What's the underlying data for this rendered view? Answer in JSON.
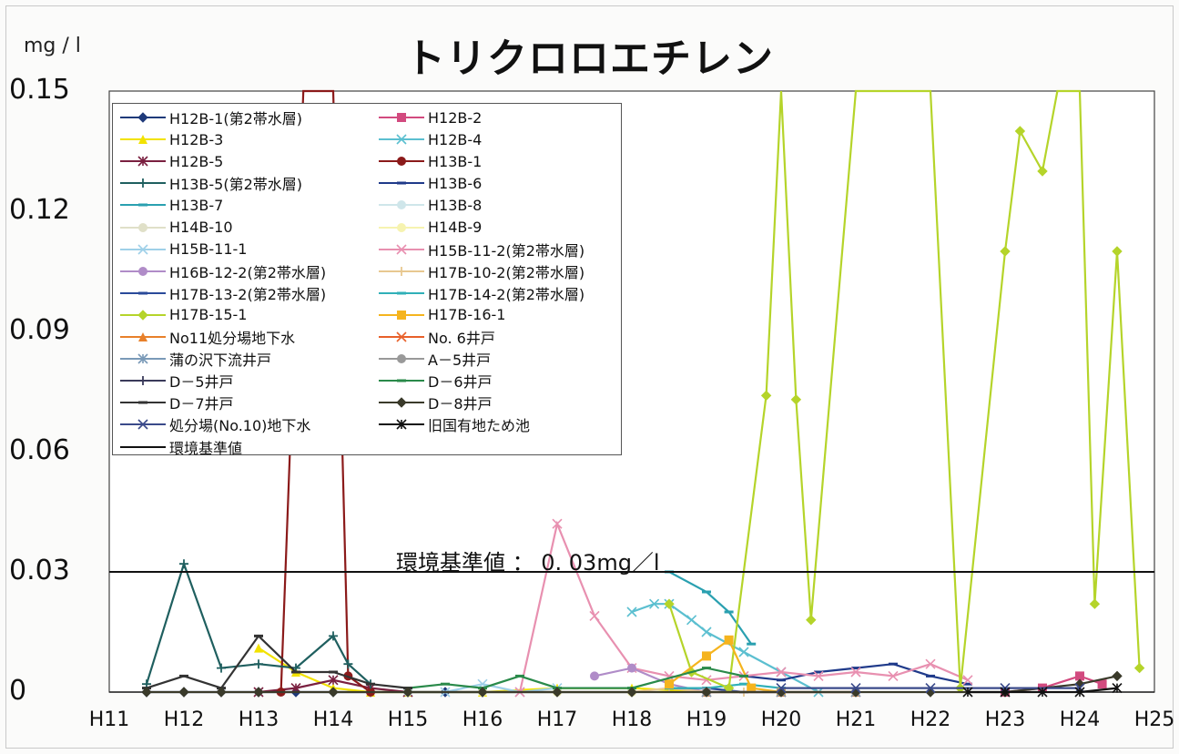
{
  "title": "トリクロロエチレン",
  "y_unit": "mg / l",
  "standard_label": "環境基準値 ： 0. 03mg／l",
  "chart_data": {
    "type": "line",
    "title": "トリクロロエチレン",
    "ylabel": "mg / l",
    "xlabel": "",
    "ylim": [
      0,
      0.15
    ],
    "yticks": [
      "0",
      "0.03",
      "0.06",
      "0.09",
      "0.12",
      "0.15"
    ],
    "xlim": [
      11,
      25
    ],
    "xticks": [
      "H11",
      "H12",
      "H13",
      "H14",
      "H15",
      "H16",
      "H17",
      "H18",
      "H19",
      "H20",
      "H21",
      "H22",
      "H23",
      "H24",
      "H25"
    ],
    "legend_position": "top-left",
    "reference_line": {
      "name": "環境基準値",
      "value": 0.03
    },
    "series": [
      {
        "name": "H12B-1(第2帯水層)",
        "color": "#1f3a7a",
        "marker": "diamond",
        "points": [
          [
            11.5,
            0
          ],
          [
            12,
            0
          ],
          [
            12.5,
            0
          ],
          [
            13,
            0
          ],
          [
            13.5,
            0
          ],
          [
            14,
            0
          ],
          [
            14.5,
            0
          ],
          [
            15,
            0
          ],
          [
            15.5,
            0
          ],
          [
            16,
            0
          ]
        ]
      },
      {
        "name": "H12B-2",
        "color": "#d24a7f",
        "marker": "square",
        "points": [
          [
            23,
            0
          ],
          [
            23.5,
            0.001
          ],
          [
            24,
            0.004
          ],
          [
            24.3,
            0.002
          ]
        ]
      },
      {
        "name": "H12B-3",
        "color": "#f2e200",
        "marker": "triangle",
        "points": [
          [
            13,
            0.011
          ],
          [
            13.5,
            0.005
          ],
          [
            14,
            0.001
          ],
          [
            14.5,
            0
          ],
          [
            15,
            0
          ],
          [
            16,
            0
          ],
          [
            17,
            0.001
          ],
          [
            18,
            0.001
          ],
          [
            19,
            0
          ]
        ]
      },
      {
        "name": "H12B-4",
        "color": "#5bbfd0",
        "marker": "x",
        "points": [
          [
            18,
            0.02
          ],
          [
            18.3,
            0.022
          ],
          [
            18.5,
            0.022
          ],
          [
            18.8,
            0.018
          ],
          [
            19,
            0.015
          ],
          [
            19.5,
            0.01
          ],
          [
            20,
            0.005
          ],
          [
            20.5,
            0
          ]
        ]
      },
      {
        "name": "H12B-5",
        "color": "#7a2040",
        "marker": "asterisk",
        "points": [
          [
            13,
            0
          ],
          [
            13.5,
            0.001
          ],
          [
            14,
            0.003
          ],
          [
            14.5,
            0.001
          ],
          [
            15,
            0
          ]
        ]
      },
      {
        "name": "H13B-1",
        "color": "#8b1a1a",
        "marker": "circle",
        "points": [
          [
            13.3,
            0
          ],
          [
            13.6,
            0.15
          ],
          [
            14,
            0.15
          ],
          [
            14.2,
            0.004
          ],
          [
            14.5,
            0
          ]
        ]
      },
      {
        "name": "H13B-5(第2帯水層)",
        "color": "#1f5f5f",
        "marker": "plus",
        "points": [
          [
            11.5,
            0.002
          ],
          [
            12,
            0.032
          ],
          [
            12.5,
            0.006
          ],
          [
            13,
            0.007
          ],
          [
            13.5,
            0.006
          ],
          [
            14,
            0.014
          ],
          [
            14.2,
            0.007
          ],
          [
            14.5,
            0.002
          ]
        ]
      },
      {
        "name": "H13B-6",
        "color": "#1f3a8a",
        "marker": "dash",
        "points": [
          [
            19.5,
            0.004
          ],
          [
            20,
            0.003
          ],
          [
            20.5,
            0.005
          ],
          [
            21,
            0.006
          ],
          [
            21.5,
            0.007
          ],
          [
            22,
            0.004
          ],
          [
            22.5,
            0.002
          ]
        ]
      },
      {
        "name": "H13B-7",
        "color": "#2aa0b0",
        "marker": "dash",
        "points": [
          [
            18.5,
            0.03
          ],
          [
            19,
            0.025
          ],
          [
            19.3,
            0.02
          ],
          [
            19.6,
            0.012
          ]
        ]
      },
      {
        "name": "H13B-8",
        "color": "#cfe6ea",
        "marker": "circle",
        "points": [
          [
            15,
            0
          ],
          [
            16,
            0
          ],
          [
            17,
            0
          ],
          [
            18,
            0
          ]
        ]
      },
      {
        "name": "H14B-10",
        "color": "#e0e0c8",
        "marker": "circle",
        "points": [
          [
            16,
            0
          ],
          [
            17,
            0
          ],
          [
            18,
            0
          ]
        ]
      },
      {
        "name": "H14B-9",
        "color": "#f6f3b0",
        "marker": "circle",
        "points": [
          [
            16,
            0
          ],
          [
            17,
            0
          ],
          [
            18,
            0
          ]
        ]
      },
      {
        "name": "H15B-11-1",
        "color": "#9fd0e8",
        "marker": "x",
        "points": [
          [
            15.5,
            0
          ],
          [
            16,
            0.002
          ],
          [
            16.5,
            0
          ],
          [
            17,
            0.001
          ]
        ]
      },
      {
        "name": "H15B-11-2(第2帯水層)",
        "color": "#e890b0",
        "marker": "x",
        "points": [
          [
            16.5,
            0
          ],
          [
            17,
            0.042
          ],
          [
            17.5,
            0.019
          ],
          [
            18,
            0.006
          ],
          [
            18.5,
            0.004
          ],
          [
            19,
            0.003
          ],
          [
            19.5,
            0.004
          ],
          [
            20,
            0.005
          ],
          [
            20.5,
            0.004
          ],
          [
            21,
            0.005
          ],
          [
            21.5,
            0.004
          ],
          [
            22,
            0.007
          ],
          [
            22.5,
            0.003
          ]
        ]
      },
      {
        "name": "H16B-12-2(第2帯水層)",
        "color": "#b08cc8",
        "marker": "circle",
        "points": [
          [
            17.5,
            0.004
          ],
          [
            18,
            0.006
          ],
          [
            18.5,
            0.002
          ],
          [
            19,
            0
          ]
        ]
      },
      {
        "name": "H17B-10-2(第2帯水層)",
        "color": "#e8c890",
        "marker": "plus",
        "points": [
          [
            18,
            0
          ],
          [
            18.5,
            0.001
          ],
          [
            19,
            0
          ],
          [
            19.5,
            0
          ]
        ]
      },
      {
        "name": "H17B-13-2(第2帯水層)",
        "color": "#2a4a9a",
        "marker": "dash",
        "points": [
          [
            18.5,
            0.001
          ],
          [
            19,
            0.001
          ],
          [
            19.5,
            0
          ],
          [
            20,
            0
          ]
        ]
      },
      {
        "name": "H17B-14-2(第2帯水層)",
        "color": "#30b0b8",
        "marker": "dash",
        "points": [
          [
            18.5,
            0.001
          ],
          [
            19,
            0.001
          ],
          [
            19.5,
            0.002
          ],
          [
            20,
            0.001
          ]
        ]
      },
      {
        "name": "H17B-15-1",
        "color": "#b5d42a",
        "marker": "diamond",
        "points": [
          [
            18.5,
            0.022
          ],
          [
            18.8,
            0.005
          ],
          [
            19.3,
            0.001
          ],
          [
            19.8,
            0.074
          ],
          [
            20,
            0.15
          ],
          [
            20.2,
            0.073
          ],
          [
            20.4,
            0.018
          ],
          [
            21,
            0.15
          ],
          [
            22,
            0.15
          ],
          [
            22.4,
            0.001
          ],
          [
            23,
            0.11
          ],
          [
            23.2,
            0.14
          ],
          [
            23.5,
            0.13
          ],
          [
            23.7,
            0.15
          ],
          [
            24,
            0.15
          ],
          [
            24.2,
            0.022
          ],
          [
            24.5,
            0.11
          ],
          [
            24.8,
            0.006
          ]
        ]
      },
      {
        "name": "H17B-16-1",
        "color": "#f5b41e",
        "marker": "square",
        "points": [
          [
            18.5,
            0.002
          ],
          [
            19,
            0.009
          ],
          [
            19.3,
            0.013
          ],
          [
            19.6,
            0.001
          ],
          [
            20,
            0
          ]
        ]
      },
      {
        "name": "No11処分場地下水",
        "color": "#e8802a",
        "marker": "triangle",
        "points": [
          [
            19,
            0
          ],
          [
            20,
            0
          ],
          [
            21,
            0
          ]
        ]
      },
      {
        "name": "No. 6井戸",
        "color": "#e8602a",
        "marker": "x",
        "points": [
          [
            19,
            0
          ],
          [
            20,
            0
          ],
          [
            21,
            0
          ]
        ]
      },
      {
        "name": "蒲の沢下流井戸",
        "color": "#7a9ab8",
        "marker": "asterisk",
        "points": [
          [
            19,
            0
          ],
          [
            20,
            0
          ],
          [
            21,
            0
          ]
        ]
      },
      {
        "name": "A－5井戸",
        "color": "#999999",
        "marker": "circle",
        "points": [
          [
            19,
            0
          ],
          [
            20,
            0
          ],
          [
            21,
            0
          ]
        ]
      },
      {
        "name": "D－5井戸",
        "color": "#3a3a5a",
        "marker": "plus",
        "points": [
          [
            15,
            0
          ],
          [
            16,
            0
          ],
          [
            17,
            0
          ],
          [
            18,
            0
          ]
        ]
      },
      {
        "name": "D－6井戸",
        "color": "#2a8a4a",
        "marker": "dash",
        "points": [
          [
            15,
            0.001
          ],
          [
            15.5,
            0.002
          ],
          [
            16,
            0.001
          ],
          [
            16.5,
            0.004
          ],
          [
            17,
            0.001
          ],
          [
            18,
            0.001
          ],
          [
            19,
            0.006
          ],
          [
            19.5,
            0.004
          ]
        ]
      },
      {
        "name": "D－7井戸",
        "color": "#333333",
        "marker": "dash",
        "points": [
          [
            11.5,
            0.001
          ],
          [
            12,
            0.004
          ],
          [
            12.5,
            0.001
          ],
          [
            13,
            0.014
          ],
          [
            13.5,
            0.005
          ],
          [
            14,
            0.005
          ],
          [
            14.5,
            0.002
          ],
          [
            15,
            0.001
          ]
        ]
      },
      {
        "name": "D－8井戸",
        "color": "#3a3a2a",
        "marker": "diamond",
        "points": [
          [
            11.5,
            0
          ],
          [
            12,
            0
          ],
          [
            12.5,
            0
          ],
          [
            13,
            0
          ],
          [
            14,
            0
          ],
          [
            15,
            0
          ],
          [
            16,
            0
          ],
          [
            17,
            0
          ],
          [
            18,
            0
          ],
          [
            19,
            0
          ],
          [
            20,
            0
          ],
          [
            21,
            0
          ],
          [
            22,
            0
          ],
          [
            23,
            0
          ],
          [
            24,
            0.002
          ],
          [
            24.5,
            0.004
          ]
        ]
      },
      {
        "name": "処分場(No.10)地下水",
        "color": "#3a4a8a",
        "marker": "x",
        "points": [
          [
            20,
            0.001
          ],
          [
            21,
            0.001
          ],
          [
            22,
            0.001
          ],
          [
            23,
            0.001
          ],
          [
            24,
            0.001
          ]
        ]
      },
      {
        "name": "旧国有地ため池",
        "color": "#111111",
        "marker": "asterisk",
        "points": [
          [
            22.5,
            0
          ],
          [
            23,
            0
          ],
          [
            23.5,
            0
          ],
          [
            24,
            0
          ],
          [
            24.5,
            0.001
          ]
        ]
      },
      {
        "name": "環境基準値",
        "color": "#111111",
        "marker": "none",
        "points": [
          [
            11,
            0.03
          ],
          [
            25,
            0.03
          ]
        ]
      }
    ]
  }
}
